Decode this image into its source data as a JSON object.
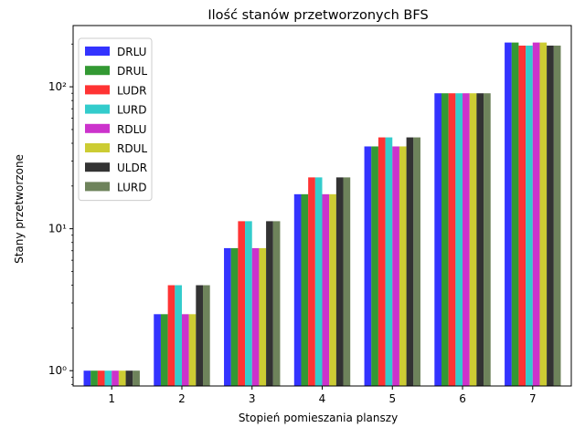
{
  "chart_data": {
    "type": "bar",
    "title": "Ilość stanów przetworzonych BFS",
    "xlabel": "Stopień pomieszania planszy",
    "ylabel": "Stany przetworzone",
    "yscale": "log",
    "ylim": [
      0.78,
      270
    ],
    "yticks": [
      {
        "value": 1,
        "label": "10⁰"
      },
      {
        "value": 10,
        "label": "10¹"
      },
      {
        "value": 100,
        "label": "10²"
      }
    ],
    "categories": [
      "1",
      "2",
      "3",
      "4",
      "5",
      "6",
      "7"
    ],
    "legend_position": "top-left",
    "grid": false,
    "series": [
      {
        "name": "DRLU",
        "color": "#0000ff",
        "values": [
          1,
          2.5,
          7.3,
          17.5,
          38,
          90,
          205
        ]
      },
      {
        "name": "DRUL",
        "color": "#008000",
        "values": [
          1,
          2.5,
          7.3,
          17.5,
          38,
          90,
          205
        ]
      },
      {
        "name": "LUDR",
        "color": "#ff0000",
        "values": [
          1,
          4.0,
          11.3,
          23,
          44,
          90,
          195
        ]
      },
      {
        "name": "LURD",
        "color": "#00bfbf",
        "values": [
          1,
          4.0,
          11.3,
          23,
          44,
          90,
          195
        ]
      },
      {
        "name": "RDLU",
        "color": "#bf00bf",
        "values": [
          1,
          2.5,
          7.3,
          17.5,
          38,
          90,
          205
        ]
      },
      {
        "name": "RDUL",
        "color": "#bfbf00",
        "values": [
          1,
          2.5,
          7.3,
          17.5,
          38,
          90,
          205
        ]
      },
      {
        "name": "ULDR",
        "color": "#000000",
        "values": [
          1,
          4.0,
          11.3,
          23,
          44,
          90,
          195
        ]
      },
      {
        "name": "LURD",
        "color": "#4a6432",
        "values": [
          1,
          4.0,
          11.3,
          23,
          44,
          90,
          195
        ]
      }
    ]
  }
}
